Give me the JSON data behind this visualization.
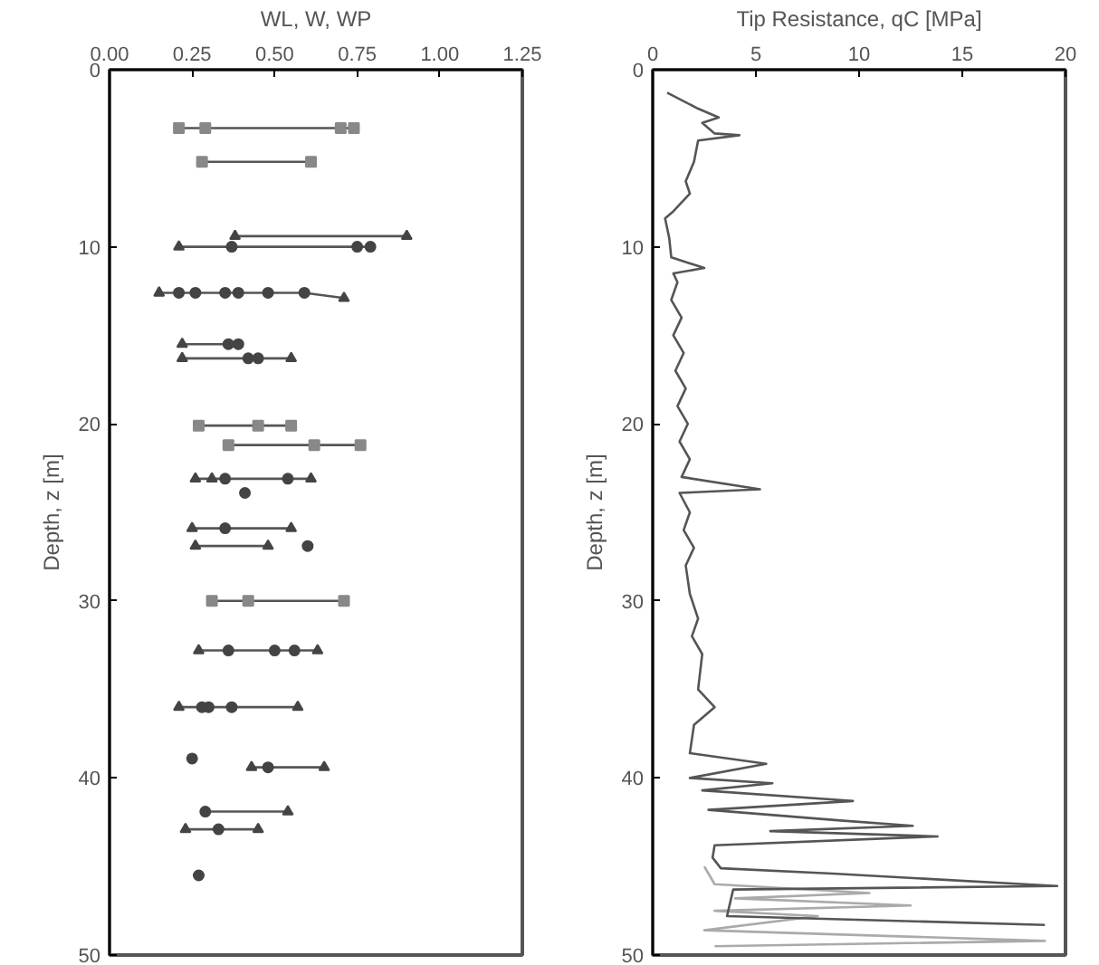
{
  "chart_data": [
    {
      "type": "scatter",
      "xlabel": "WL, W, WP",
      "ylabel": "Depth, z [m]",
      "xlim": [
        0,
        1.25
      ],
      "xticks": [
        {
          "value": 0,
          "label": "0.00"
        },
        0.25,
        {
          "value": 0.5,
          "label": "0.50"
        },
        0.75,
        {
          "value": 1,
          "label": "1.00"
        },
        1.25
      ],
      "ylim": [
        50,
        0
      ],
      "yticks": [
        0,
        10,
        20,
        30,
        40,
        50
      ],
      "grid": false,
      "series": [
        {
          "type": "line",
          "color": "#555555",
          "line_style": "solid",
          "marker": "none",
          "x": [
            0.21,
            0.74,
            null,
            0.28,
            0.61,
            null,
            0.38,
            0.9,
            null,
            0.21,
            0.79,
            null,
            0.15,
            0.59,
            0.71,
            null,
            0.22,
            0.39,
            null,
            0.22,
            0.55,
            null,
            0.27,
            0.55,
            null,
            0.36,
            0.76,
            null,
            0.26,
            0.61,
            null,
            0.25,
            0.55,
            null,
            0.26,
            0.48,
            null,
            0.31,
            0.71,
            null,
            0.27,
            0.63,
            null,
            0.21,
            0.57,
            null,
            0.43,
            0.65,
            null,
            0.29,
            0.54,
            null,
            0.23,
            0.45
          ],
          "values": [
            3.3,
            3.3,
            null,
            5.2,
            5.2,
            null,
            9.4,
            9.4,
            null,
            10.0,
            10.0,
            null,
            12.6,
            12.6,
            12.9,
            null,
            15.5,
            15.5,
            null,
            16.3,
            16.3,
            null,
            20.1,
            20.1,
            null,
            21.2,
            21.2,
            null,
            23.1,
            23.1,
            null,
            25.9,
            25.9,
            null,
            26.9,
            26.9,
            null,
            30.0,
            30.0,
            null,
            32.8,
            32.8,
            null,
            36.0,
            36.0,
            null,
            39.4,
            39.4,
            null,
            41.9,
            41.9,
            null,
            42.9,
            42.9
          ]
        },
        {
          "color": "#444444",
          "marker": "triangle",
          "x": [
            0.38,
            0.9,
            0.21,
            0.15,
            0.71,
            0.22,
            0.22,
            0.55,
            0.26,
            0.31,
            0.61,
            0.25,
            0.55,
            0.26,
            0.48,
            0.27,
            0.63,
            0.21,
            0.57,
            0.43,
            0.65,
            0.54,
            0.23,
            0.45
          ],
          "values": [
            9.4,
            9.4,
            10.0,
            12.6,
            12.9,
            15.5,
            16.3,
            16.3,
            23.1,
            23.1,
            23.1,
            25.9,
            25.9,
            26.9,
            26.9,
            32.8,
            32.8,
            36.0,
            36.0,
            39.4,
            39.4,
            41.9,
            42.9,
            42.9
          ]
        },
        {
          "color": "#444444",
          "marker": "circle",
          "x": [
            0.37,
            0.75,
            0.79,
            0.21,
            0.26,
            0.35,
            0.39,
            0.48,
            0.59,
            0.36,
            0.39,
            0.42,
            0.45,
            0.35,
            0.54,
            0.41,
            0.35,
            0.6,
            0.36,
            0.5,
            0.56,
            0.28,
            0.3,
            0.37,
            0.25,
            0.48,
            0.29,
            0.33,
            0.27
          ],
          "values": [
            10.0,
            10.0,
            10.0,
            12.6,
            12.6,
            12.6,
            12.6,
            12.6,
            12.6,
            15.5,
            15.5,
            16.3,
            16.3,
            23.1,
            23.1,
            23.9,
            25.9,
            26.9,
            32.8,
            32.8,
            32.8,
            36.0,
            36.0,
            36.0,
            38.9,
            39.4,
            41.9,
            42.9,
            45.5
          ]
        },
        {
          "color": "#888888",
          "marker": "square",
          "x": [
            0.21,
            0.29,
            0.7,
            0.74,
            0.28,
            0.61,
            0.27,
            0.45,
            0.55,
            0.36,
            0.62,
            0.76,
            0.31,
            0.42,
            0.71
          ],
          "values": [
            3.3,
            3.3,
            3.3,
            3.3,
            5.2,
            5.2,
            20.1,
            20.1,
            20.1,
            21.2,
            21.2,
            21.2,
            30.0,
            30.0,
            30.0
          ]
        }
      ]
    },
    {
      "type": "line",
      "xlabel": "Tip Resistance, qC [MPa]",
      "ylabel": "Depth, z [m]",
      "xlim": [
        0,
        20
      ],
      "xticks": [
        0,
        5,
        10,
        15,
        20
      ],
      "ylim": [
        50,
        0
      ],
      "yticks": [
        0,
        10,
        20,
        30,
        40,
        50
      ],
      "grid": false,
      "series": [
        {
          "color": "#aaaaaa",
          "line_style": "solid",
          "marker": "none",
          "x": [
            2.5,
            3.0,
            10.5,
            4.0,
            12.5,
            3.0,
            8.0,
            2.5,
            19.0,
            3.0
          ],
          "values": [
            45.0,
            46.0,
            46.5,
            46.8,
            47.2,
            47.5,
            47.8,
            48.6,
            49.2,
            49.5
          ]
        },
        {
          "color": "#555555",
          "line_style": "solid",
          "marker": "none",
          "x": [
            0.7,
            2.2,
            3.2,
            2.4,
            3.0,
            4.2,
            2.2,
            2.0,
            1.6,
            1.8,
            1.0,
            0.6,
            0.8,
            0.9,
            2.5,
            1.0,
            1.2,
            0.9,
            1.4,
            1.0,
            1.5,
            1.1,
            1.6,
            1.2,
            1.7,
            1.3,
            1.8,
            1.4,
            5.2,
            1.3,
            1.8,
            1.5,
            2.0,
            1.6,
            1.8,
            2.2,
            1.9,
            2.4,
            2.2,
            3.0,
            2.0,
            1.8,
            5.5,
            1.8,
            5.8,
            2.4,
            9.7,
            2.7,
            9.1,
            12.6,
            5.7,
            13.8,
            3.0,
            2.9,
            3.3,
            8.7,
            19.6,
            3.9,
            3.6,
            19.0
          ],
          "values": [
            1.3,
            2.2,
            2.7,
            3.0,
            3.6,
            3.7,
            4.0,
            5.2,
            6.3,
            7.0,
            8.0,
            8.4,
            9.5,
            10.6,
            11.2,
            11.5,
            12.0,
            13.0,
            14.0,
            15.0,
            16.0,
            17.0,
            18.0,
            19.0,
            20.0,
            21.0,
            22.0,
            23.0,
            23.7,
            23.9,
            25.0,
            26.0,
            27.0,
            28.0,
            29.6,
            31.0,
            32.0,
            33.0,
            35.0,
            36.0,
            37.0,
            38.6,
            39.2,
            40.0,
            40.3,
            40.7,
            41.3,
            41.8,
            42.4,
            42.7,
            43.0,
            43.3,
            43.8,
            44.5,
            45.1,
            45.4,
            46.1,
            46.3,
            47.8,
            48.3
          ]
        }
      ]
    }
  ]
}
